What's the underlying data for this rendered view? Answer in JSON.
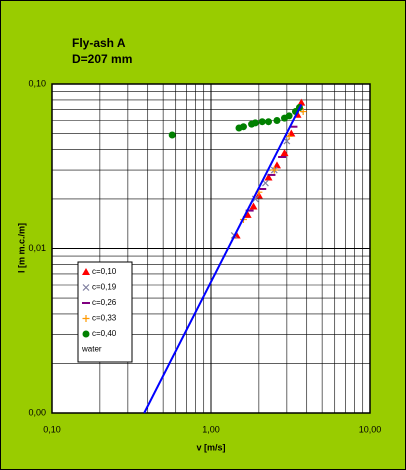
{
  "chart_data": {
    "type": "scatter",
    "title": "Fly-ash A",
    "subtitle": "D=207 mm",
    "x_label": "v [m/s]",
    "y_label": "I [m m.c./m]",
    "log_x": true,
    "log_y": true,
    "grid": true,
    "minor_grid": true,
    "legend_position": "lower left",
    "xlim": [
      0.1,
      10
    ],
    "ylim": [
      0.001,
      0.1
    ],
    "xticks": [
      {
        "value": 0.1,
        "label": "0,10"
      },
      {
        "value": 1,
        "label": "1,00"
      },
      {
        "value": 10,
        "label": "10,00"
      }
    ],
    "yticks": [
      {
        "value": 0.001,
        "label": "0,00"
      },
      {
        "value": 0.01,
        "label": "0,01"
      },
      {
        "value": 0.1,
        "label": "0,10"
      }
    ],
    "series": [
      {
        "name": "c=0,10",
        "color": "#ff0000",
        "marker": "triangle",
        "x": [
          1.45,
          1.7,
          1.85,
          2.0,
          2.3,
          2.6,
          2.9,
          3.2,
          3.5,
          3.7
        ],
        "values": [
          0.012,
          0.016,
          0.018,
          0.021,
          0.027,
          0.032,
          0.038,
          0.05,
          0.065,
          0.077
        ]
      },
      {
        "name": "c=0,19",
        "color": "#7f7f9f",
        "marker": "x",
        "x": [
          1.4,
          1.9,
          2.2,
          2.5,
          3.0,
          3.6
        ],
        "values": [
          0.012,
          0.02,
          0.025,
          0.03,
          0.045,
          0.07
        ]
      },
      {
        "name": "c=0,26",
        "color": "#800080",
        "marker": "dash",
        "x": [
          1.75,
          2.1,
          2.4,
          2.8,
          3.3
        ],
        "values": [
          0.017,
          0.023,
          0.028,
          0.036,
          0.055
        ]
      },
      {
        "name": "c=0,33",
        "color": "#ff9900",
        "marker": "plus",
        "x": [
          1.6,
          2.0,
          2.5,
          3.1,
          3.8
        ],
        "values": [
          0.015,
          0.022,
          0.03,
          0.048,
          0.068
        ]
      },
      {
        "name": "c=0,40",
        "color": "#008000",
        "marker": "circle",
        "x": [
          0.57,
          1.5,
          1.6,
          1.8,
          1.9,
          2.1,
          2.3,
          2.6,
          2.9,
          3.1,
          3.4,
          3.6
        ],
        "values": [
          0.049,
          0.054,
          0.055,
          0.057,
          0.058,
          0.059,
          0.059,
          0.06,
          0.062,
          0.064,
          0.068,
          0.072
        ]
      },
      {
        "name": "water",
        "color": "#0000ff",
        "marker": "line",
        "x": [
          0.38,
          3.7
        ],
        "values": [
          0.001,
          0.075
        ]
      }
    ]
  }
}
